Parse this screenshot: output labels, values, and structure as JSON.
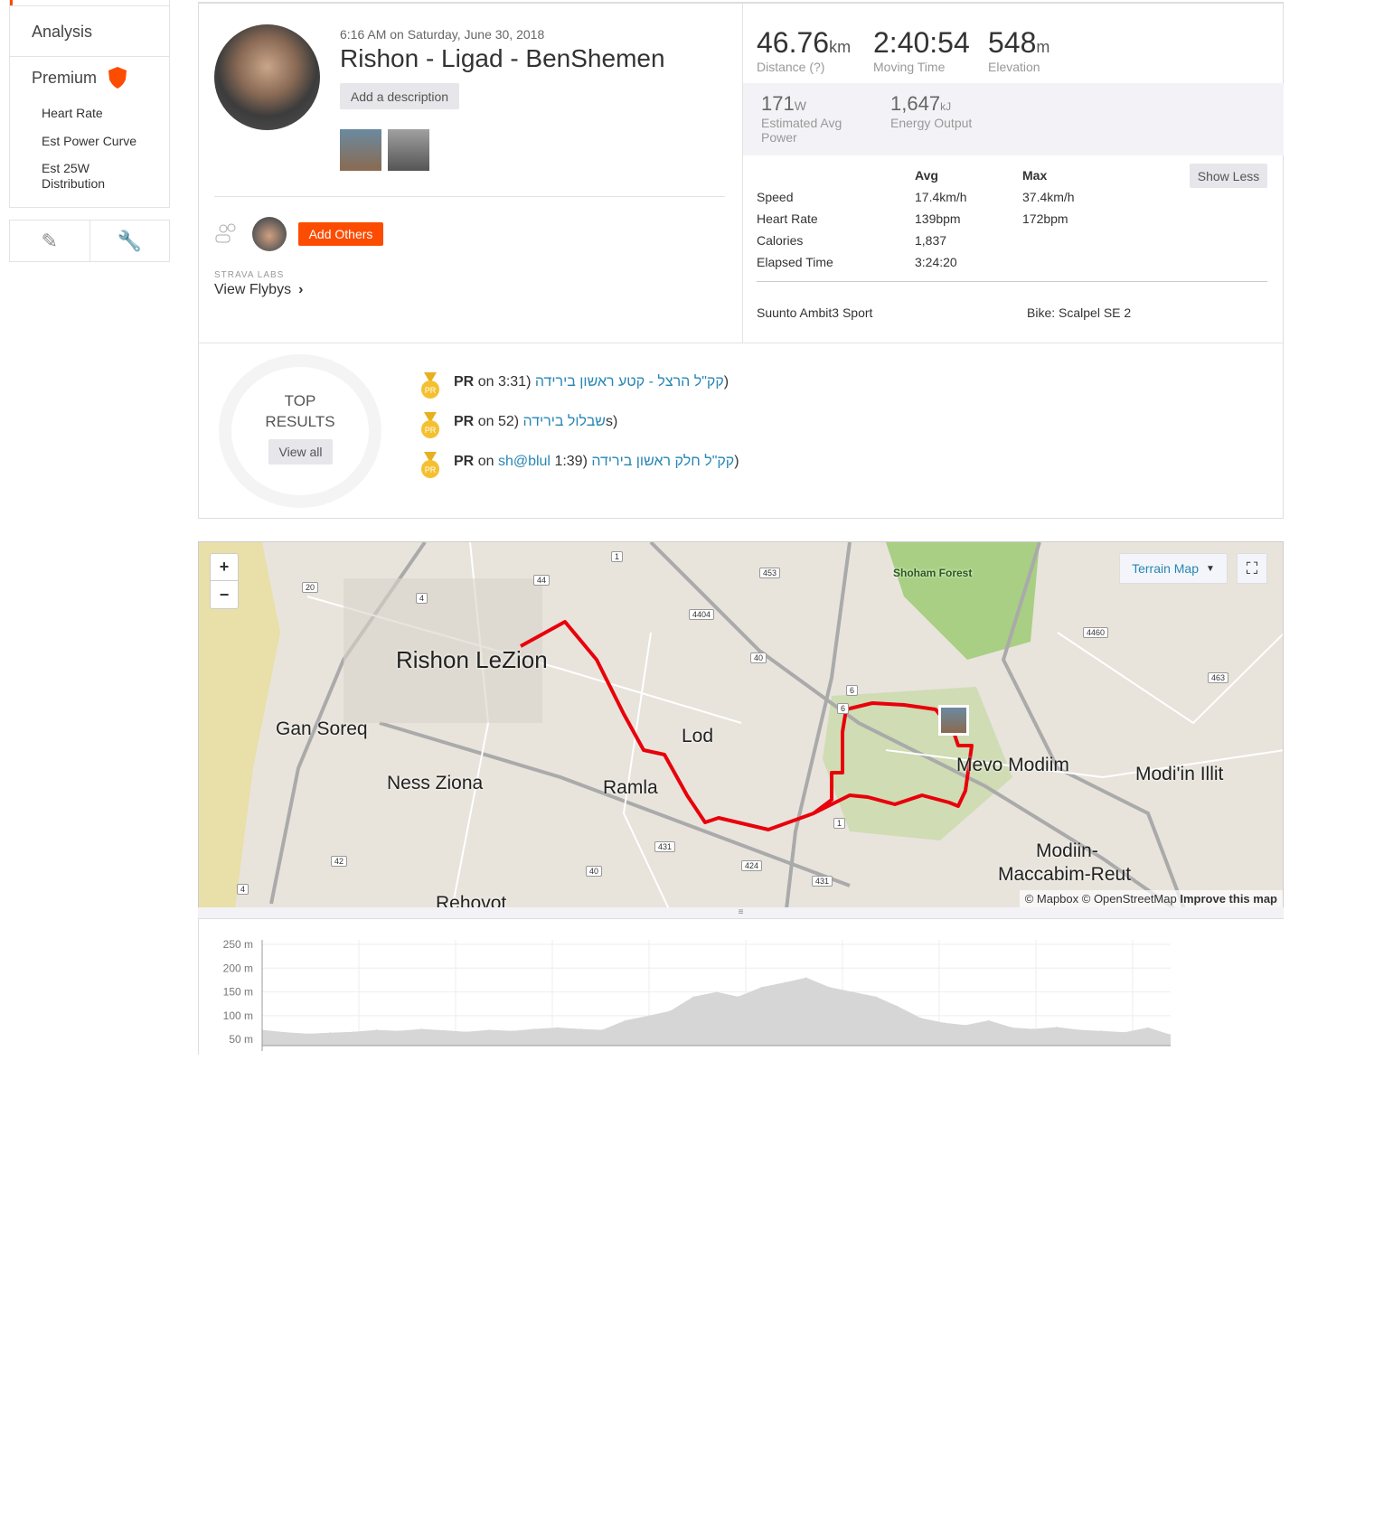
{
  "sidebar": {
    "analysis": "Analysis",
    "premium": "Premium",
    "items": [
      {
        "label": "Heart Rate"
      },
      {
        "label": "Est Power Curve"
      },
      {
        "label": "Est 25W Distribution"
      }
    ],
    "tools": [
      "pencil-icon",
      "wrench-icon"
    ]
  },
  "activity": {
    "datetime": "6:16 AM on Saturday, June 30, 2018",
    "title": "Rishon - Ligad - BenShemen",
    "add_description": "Add a description",
    "add_others": "Add Others",
    "labs": "STRAVA LABS",
    "flybys": "View Flybys"
  },
  "stats": {
    "distance": {
      "value": "46.76",
      "unit": "km",
      "label": "Distance (?)"
    },
    "moving_time": {
      "value": "2:40:54",
      "label": "Moving Time"
    },
    "elevation": {
      "value": "548",
      "unit": "m",
      "label": "Elevation"
    },
    "power": {
      "value": "171",
      "unit": "W",
      "label": "Estimated Avg Power"
    },
    "energy": {
      "value": "1,647",
      "unit": "kJ",
      "label": "Energy Output"
    },
    "table": {
      "avg": "Avg",
      "max": "Max",
      "show_less": "Show Less",
      "rows": [
        {
          "name": "Speed",
          "avg": "17.4km/h",
          "max": "37.4km/h"
        },
        {
          "name": "Heart Rate",
          "avg": "139bpm",
          "max": "172bpm"
        },
        {
          "name": "Calories",
          "avg": "1,837",
          "max": ""
        },
        {
          "name": "Elapsed Time",
          "avg": "3:24:20",
          "max": ""
        }
      ]
    },
    "device": "Suunto Ambit3 Sport",
    "bike": "Bike: Scalpel SE 2"
  },
  "top_results": {
    "title1": "TOP",
    "title2": "RESULTS",
    "view_all": "View all",
    "items": [
      {
        "pr": "PR",
        "on": "on",
        "pre": "",
        "post": "3:31)",
        "segment": "קק\"ל הרצל - קטע ראשון בירידה",
        "close": ")"
      },
      {
        "pr": "PR",
        "on": "on",
        "pre": "",
        "post": "52)",
        "segment": "שבלול בירידה",
        "close": "s)"
      },
      {
        "pr": "PR",
        "on": "on",
        "pre": "sh@blul",
        "post": "1:39)",
        "segment": "קק\"ל חלק ראשון בירידה",
        "close": ")"
      }
    ]
  },
  "map": {
    "type": "Terrain Map",
    "zoom_in": "+",
    "zoom_out": "−",
    "attribution": "© Mapbox © OpenStreetMap",
    "improve": "Improve this map",
    "places": [
      "Rishon LeZion",
      "Gan Soreq",
      "Ness Ziona",
      "Lod",
      "Ramla",
      "Mevo Modiim",
      "Modi'in Illit",
      "Modiin-",
      "Maccabim-Reut",
      "Rehovot",
      "Shoham Forest"
    ],
    "roads": [
      "1",
      "453",
      "44",
      "20",
      "4",
      "4404",
      "40",
      "6",
      "6",
      "4460",
      "463",
      "1",
      "431",
      "424",
      "431",
      "40",
      "42",
      "4"
    ],
    "route_color": "#e8000b"
  },
  "chart_data": {
    "type": "area",
    "title": "",
    "xlabel": "",
    "ylabel": "",
    "ylim": [
      37,
      250
    ],
    "yticks": [
      "250 m",
      "200 m",
      "150 m",
      "100 m",
      "50 m"
    ],
    "grid": true,
    "x_km": [
      0,
      1.2,
      2.4,
      3.5,
      4.7,
      5.9,
      7,
      8.2,
      9.4,
      10.5,
      11.7,
      12.9,
      14,
      15.2,
      16.4,
      17.5,
      18.7,
      19.9,
      21,
      22.2,
      23.4,
      24.5,
      25.7,
      26.9,
      28,
      29.2,
      30.4,
      31.6,
      32.7,
      33.9,
      35.1,
      36.2,
      37.4,
      38.6,
      39.7,
      40.9,
      42.1,
      43.2,
      44.4,
      45.6,
      46.76
    ],
    "elevation_m": [
      70,
      65,
      62,
      64,
      66,
      70,
      68,
      72,
      69,
      66,
      70,
      68,
      72,
      75,
      72,
      70,
      90,
      100,
      110,
      140,
      150,
      140,
      160,
      170,
      180,
      160,
      150,
      140,
      120,
      95,
      85,
      80,
      90,
      75,
      72,
      76,
      70,
      68,
      65,
      75,
      60
    ]
  }
}
